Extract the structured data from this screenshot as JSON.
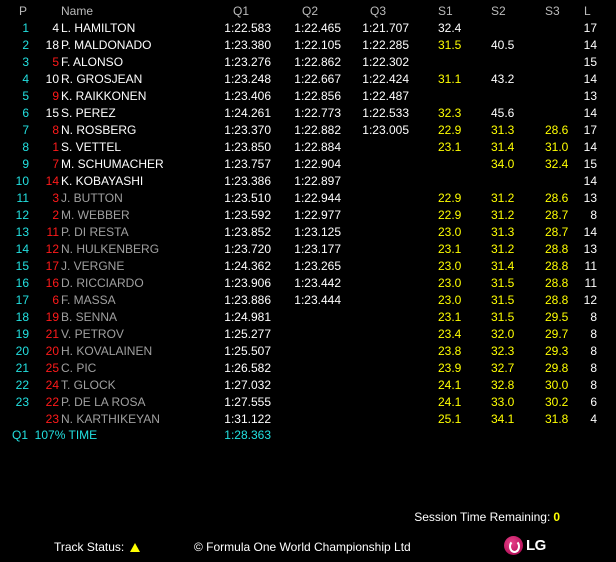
{
  "colors": {
    "position": "#22e0e0",
    "car_red": "#ff1a1a",
    "best_sector": "#ffff00",
    "eliminated_name": "#a0a0a0"
  },
  "header": {
    "p": "P",
    "name": "Name",
    "q1": "Q1",
    "q2": "Q2",
    "q3": "Q3",
    "s1": "S1",
    "s2": "S2",
    "s3": "S3",
    "laps": "L"
  },
  "rows": [
    {
      "pos": "1",
      "num": "4",
      "num_color": "white",
      "name": "L. HAMILTON",
      "name_color": "white",
      "q1": "1:22.583",
      "q2": "1:22.465",
      "q3": "1:21.707",
      "s1": "32.4",
      "s1_color": "white",
      "s2": "",
      "s2_color": "white",
      "s3": "",
      "s3_color": "white",
      "laps": "17"
    },
    {
      "pos": "2",
      "num": "18",
      "num_color": "white",
      "name": "P. MALDONADO",
      "name_color": "white",
      "q1": "1:23.380",
      "q2": "1:22.105",
      "q3": "1:22.285",
      "s1": "31.5",
      "s1_color": "yellow",
      "s2": "40.5",
      "s2_color": "white",
      "s3": "",
      "s3_color": "white",
      "laps": "14"
    },
    {
      "pos": "3",
      "num": "5",
      "num_color": "red",
      "name": "F. ALONSO",
      "name_color": "white",
      "q1": "1:23.276",
      "q2": "1:22.862",
      "q3": "1:22.302",
      "s1": "",
      "s1_color": "white",
      "s2": "",
      "s2_color": "white",
      "s3": "",
      "s3_color": "white",
      "laps": "15"
    },
    {
      "pos": "4",
      "num": "10",
      "num_color": "white",
      "name": "R. GROSJEAN",
      "name_color": "white",
      "q1": "1:23.248",
      "q2": "1:22.667",
      "q3": "1:22.424",
      "s1": "31.1",
      "s1_color": "yellow",
      "s2": "43.2",
      "s2_color": "white",
      "s3": "",
      "s3_color": "white",
      "laps": "14"
    },
    {
      "pos": "5",
      "num": "9",
      "num_color": "red",
      "name": "K. RAIKKONEN",
      "name_color": "white",
      "q1": "1:23.406",
      "q2": "1:22.856",
      "q3": "1:22.487",
      "s1": "",
      "s1_color": "white",
      "s2": "",
      "s2_color": "white",
      "s3": "",
      "s3_color": "white",
      "laps": "13"
    },
    {
      "pos": "6",
      "num": "15",
      "num_color": "white",
      "name": "S. PEREZ",
      "name_color": "white",
      "q1": "1:24.261",
      "q2": "1:22.773",
      "q3": "1:22.533",
      "s1": "32.3",
      "s1_color": "yellow",
      "s2": "45.6",
      "s2_color": "white",
      "s3": "",
      "s3_color": "white",
      "laps": "14"
    },
    {
      "pos": "7",
      "num": "8",
      "num_color": "red",
      "name": "N. ROSBERG",
      "name_color": "white",
      "q1": "1:23.370",
      "q2": "1:22.882",
      "q3": "1:23.005",
      "s1": "22.9",
      "s1_color": "yellow",
      "s2": "31.3",
      "s2_color": "yellow",
      "s3": "28.6",
      "s3_color": "yellow",
      "laps": "17"
    },
    {
      "pos": "8",
      "num": "1",
      "num_color": "red",
      "name": "S. VETTEL",
      "name_color": "white",
      "q1": "1:23.850",
      "q2": "1:22.884",
      "q3": "",
      "s1": "23.1",
      "s1_color": "yellow",
      "s2": "31.4",
      "s2_color": "yellow",
      "s3": "31.0",
      "s3_color": "yellow",
      "laps": "14"
    },
    {
      "pos": "9",
      "num": "7",
      "num_color": "red",
      "name": "M. SCHUMACHER",
      "name_color": "white",
      "q1": "1:23.757",
      "q2": "1:22.904",
      "q3": "",
      "s1": "",
      "s1_color": "white",
      "s2": "34.0",
      "s2_color": "yellow",
      "s3": "32.4",
      "s3_color": "yellow",
      "laps": "15"
    },
    {
      "pos": "10",
      "num": "14",
      "num_color": "red",
      "name": "K. KOBAYASHI",
      "name_color": "white",
      "q1": "1:23.386",
      "q2": "1:22.897",
      "q3": "",
      "s1": "",
      "s1_color": "white",
      "s2": "",
      "s2_color": "white",
      "s3": "",
      "s3_color": "white",
      "laps": "14"
    },
    {
      "pos": "11",
      "num": "3",
      "num_color": "red",
      "name": "J. BUTTON",
      "name_color": "grey",
      "q1": "1:23.510",
      "q2": "1:22.944",
      "q3": "",
      "s1": "22.9",
      "s1_color": "yellow",
      "s2": "31.2",
      "s2_color": "yellow",
      "s3": "28.6",
      "s3_color": "yellow",
      "laps": "13"
    },
    {
      "pos": "12",
      "num": "2",
      "num_color": "red",
      "name": "M. WEBBER",
      "name_color": "grey",
      "q1": "1:23.592",
      "q2": "1:22.977",
      "q3": "",
      "s1": "22.9",
      "s1_color": "yellow",
      "s2": "31.2",
      "s2_color": "yellow",
      "s3": "28.7",
      "s3_color": "yellow",
      "laps": "8"
    },
    {
      "pos": "13",
      "num": "11",
      "num_color": "red",
      "name": "P. DI RESTA",
      "name_color": "grey",
      "q1": "1:23.852",
      "q2": "1:23.125",
      "q3": "",
      "s1": "23.0",
      "s1_color": "yellow",
      "s2": "31.3",
      "s2_color": "yellow",
      "s3": "28.7",
      "s3_color": "yellow",
      "laps": "14"
    },
    {
      "pos": "14",
      "num": "12",
      "num_color": "red",
      "name": "N. HULKENBERG",
      "name_color": "grey",
      "q1": "1:23.720",
      "q2": "1:23.177",
      "q3": "",
      "s1": "23.1",
      "s1_color": "yellow",
      "s2": "31.2",
      "s2_color": "yellow",
      "s3": "28.8",
      "s3_color": "yellow",
      "laps": "13"
    },
    {
      "pos": "15",
      "num": "17",
      "num_color": "red",
      "name": "J. VERGNE",
      "name_color": "grey",
      "q1": "1:24.362",
      "q2": "1:23.265",
      "q3": "",
      "s1": "23.0",
      "s1_color": "yellow",
      "s2": "31.4",
      "s2_color": "yellow",
      "s3": "28.8",
      "s3_color": "yellow",
      "laps": "11"
    },
    {
      "pos": "16",
      "num": "16",
      "num_color": "red",
      "name": "D. RICCIARDO",
      "name_color": "grey",
      "q1": "1:23.906",
      "q2": "1:23.442",
      "q3": "",
      "s1": "23.0",
      "s1_color": "yellow",
      "s2": "31.5",
      "s2_color": "yellow",
      "s3": "28.8",
      "s3_color": "yellow",
      "laps": "11"
    },
    {
      "pos": "17",
      "num": "6",
      "num_color": "red",
      "name": "F. MASSA",
      "name_color": "grey",
      "q1": "1:23.886",
      "q2": "1:23.444",
      "q3": "",
      "s1": "23.0",
      "s1_color": "yellow",
      "s2": "31.5",
      "s2_color": "yellow",
      "s3": "28.8",
      "s3_color": "yellow",
      "laps": "12"
    },
    {
      "pos": "18",
      "num": "19",
      "num_color": "red",
      "name": "B. SENNA",
      "name_color": "grey",
      "q1": "1:24.981",
      "q2": "",
      "q3": "",
      "s1": "23.1",
      "s1_color": "yellow",
      "s2": "31.5",
      "s2_color": "yellow",
      "s3": "29.5",
      "s3_color": "yellow",
      "laps": "8"
    },
    {
      "pos": "19",
      "num": "21",
      "num_color": "red",
      "name": "V. PETROV",
      "name_color": "grey",
      "q1": "1:25.277",
      "q2": "",
      "q3": "",
      "s1": "23.4",
      "s1_color": "yellow",
      "s2": "32.0",
      "s2_color": "yellow",
      "s3": "29.7",
      "s3_color": "yellow",
      "laps": "8"
    },
    {
      "pos": "20",
      "num": "20",
      "num_color": "red",
      "name": "H. KOVALAINEN",
      "name_color": "grey",
      "q1": "1:25.507",
      "q2": "",
      "q3": "",
      "s1": "23.8",
      "s1_color": "yellow",
      "s2": "32.3",
      "s2_color": "yellow",
      "s3": "29.3",
      "s3_color": "yellow",
      "laps": "8"
    },
    {
      "pos": "21",
      "num": "25",
      "num_color": "red",
      "name": "C. PIC",
      "name_color": "grey",
      "q1": "1:26.582",
      "q2": "",
      "q3": "",
      "s1": "23.9",
      "s1_color": "yellow",
      "s2": "32.7",
      "s2_color": "yellow",
      "s3": "29.8",
      "s3_color": "yellow",
      "laps": "8"
    },
    {
      "pos": "22",
      "num": "24",
      "num_color": "red",
      "name": "T. GLOCK",
      "name_color": "grey",
      "q1": "1:27.032",
      "q2": "",
      "q3": "",
      "s1": "24.1",
      "s1_color": "yellow",
      "s2": "32.8",
      "s2_color": "yellow",
      "s3": "30.0",
      "s3_color": "yellow",
      "laps": "8"
    },
    {
      "pos": "23",
      "num": "22",
      "num_color": "red",
      "name": "P. DE LA ROSA",
      "name_color": "grey",
      "q1": "1:27.555",
      "q2": "",
      "q3": "",
      "s1": "24.1",
      "s1_color": "yellow",
      "s2": "33.0",
      "s2_color": "yellow",
      "s3": "30.2",
      "s3_color": "yellow",
      "laps": "6"
    },
    {
      "pos": "",
      "num": "23",
      "num_color": "red",
      "name": "N. KARTHIKEYAN",
      "name_color": "grey",
      "q1": "1:31.122",
      "q2": "",
      "q3": "",
      "s1": "25.1",
      "s1_color": "yellow",
      "s2": "34.1",
      "s2_color": "yellow",
      "s3": "31.8",
      "s3_color": "yellow",
      "laps": "4"
    }
  ],
  "q107": {
    "label": "Q1  107% TIME",
    "time": "1:28.363"
  },
  "footer": {
    "session_label": "Session Time Remaining:",
    "session_value": "0",
    "track_label": "Track Status:",
    "track_icon": "yellow-flag-triangle-icon",
    "copyright": "© Formula One World Championship Ltd",
    "logo_text": "LG"
  }
}
